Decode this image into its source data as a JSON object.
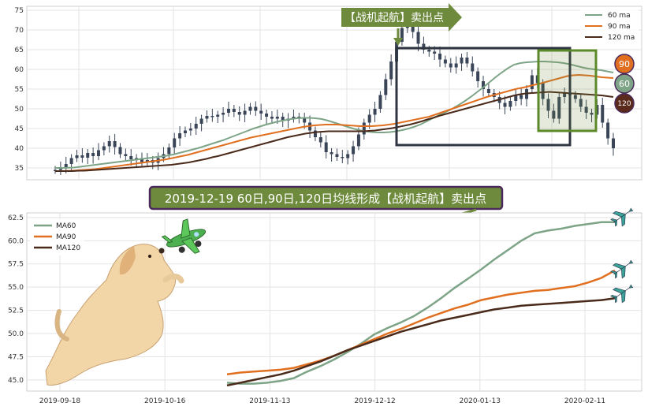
{
  "top_panel": {
    "callout_label": "【战机起航】卖出点",
    "badges": [
      "90",
      "60",
      "120"
    ],
    "badge_colors": {
      "90": "#e07020",
      "60": "#7ea487",
      "120": "#5a2a1c"
    },
    "colors": {
      "ma60": "#7ea487",
      "ma90": "#e07020",
      "ma120": "#4a2a1a",
      "candle": "#3a4658",
      "box_dark": "#2e3440",
      "box_green": "#5c8a2a"
    }
  },
  "banner": {
    "text": "2019-12-19 60日,90日,120日均线形成【战机起航】卖出点",
    "bg": "#6e8b3d",
    "border": "#4a2a5a"
  },
  "chart_data": [
    {
      "type": "candlestick+line",
      "ylim": [
        32,
        76
      ],
      "yticks": [
        35,
        40,
        45,
        50,
        55,
        60,
        65,
        70,
        75
      ],
      "n": 104,
      "legend": {
        "position": "top-right",
        "entries": [
          "60 ma",
          "90 ma",
          "120 ma"
        ]
      },
      "close": [
        34.5,
        35.2,
        36.0,
        37.5,
        38.2,
        37.6,
        38.8,
        38.0,
        39.5,
        40.5,
        41.8,
        40.3,
        38.5,
        38.0,
        37.2,
        37.5,
        36.5,
        37.0,
        36.3,
        37.5,
        38.5,
        40.2,
        42.5,
        43.8,
        44.5,
        45.0,
        46.2,
        47.5,
        48.2,
        48.0,
        48.5,
        49.0,
        50.0,
        49.2,
        48.5,
        49.5,
        50.5,
        49.5,
        48.8,
        48.0,
        47.5,
        48.0,
        47.0,
        47.5,
        48.0,
        47.6,
        46.5,
        44.5,
        42.8,
        41.5,
        39.0,
        38.5,
        37.8,
        37.5,
        38.5,
        40.5,
        43.5,
        46.5,
        48.5,
        50.0,
        53.5,
        57.5,
        62.0,
        67.0,
        70.5,
        72.0,
        69.5,
        66.5,
        65.0,
        64.5,
        64.0,
        62.5,
        61.5,
        60.5,
        61.5,
        63.0,
        61.5,
        59.5,
        57.0,
        55.0,
        54.0,
        53.0,
        51.5,
        50.5,
        52.0,
        53.5,
        52.5,
        55.0,
        58.5,
        56.5,
        52.5,
        49.5,
        47.5,
        53.0,
        54.0,
        53.5,
        52.5,
        50.5,
        49.0,
        48.5,
        51.0,
        46.5,
        42.5,
        40.0
      ],
      "series": [
        {
          "name": "60 ma",
          "values": [
            35.0,
            35.0,
            35.05,
            35.1,
            35.3,
            35.5,
            35.7,
            35.9,
            36.1,
            36.3,
            36.5,
            36.7,
            36.9,
            37.1,
            37.3,
            37.5,
            37.7,
            37.9,
            38.1,
            38.4,
            38.8,
            39.2,
            39.6,
            40.0,
            40.5,
            41.0,
            41.5,
            42.0,
            42.6,
            43.2,
            43.8,
            44.4,
            45.0,
            45.5,
            46.0,
            46.4,
            46.8,
            47.1,
            47.4,
            47.6,
            47.7,
            47.7,
            47.6,
            47.4,
            47.0,
            46.5,
            46.0,
            45.5,
            45.0,
            44.6,
            44.3,
            44.1,
            44.0,
            44.0,
            44.1,
            44.3,
            44.6,
            45.0,
            45.5,
            46.1,
            46.9,
            47.7,
            48.5,
            49.2,
            50.0,
            50.9,
            51.9,
            53.0,
            54.2,
            55.4,
            56.7,
            58.0,
            59.2,
            60.3,
            61.2,
            61.6,
            61.8,
            61.9,
            62.0,
            62.0,
            61.9,
            61.8,
            61.6,
            61.3,
            60.9,
            60.5,
            60.2,
            60.0,
            59.8,
            59.5,
            59.2
          ]
        },
        {
          "name": "90 ma",
          "values": [
            34.2,
            34.2,
            34.25,
            34.3,
            34.4,
            34.5,
            34.6,
            34.7,
            34.9,
            35.1,
            35.3,
            35.5,
            35.7,
            35.9,
            36.1,
            36.3,
            36.5,
            36.7,
            36.9,
            37.1,
            37.4,
            37.7,
            38.0,
            38.3,
            38.7,
            39.1,
            39.5,
            39.9,
            40.3,
            40.7,
            41.1,
            41.5,
            41.9,
            42.3,
            42.7,
            43.0,
            43.3,
            43.6,
            43.9,
            44.2,
            44.5,
            44.8,
            45.1,
            45.4,
            45.6,
            45.8,
            45.9,
            46.0,
            46.0,
            46.0,
            45.9,
            45.8,
            45.7,
            45.6,
            45.6,
            45.6,
            45.7,
            45.8,
            46.0,
            46.2,
            46.5,
            46.8,
            47.1,
            47.4,
            47.7,
            48.0,
            48.5,
            49.0,
            49.5,
            50.0,
            50.5,
            51.0,
            51.5,
            52.0,
            52.5,
            53.0,
            53.4,
            53.8,
            54.2,
            54.6,
            55.0,
            55.3,
            55.6,
            56.0,
            56.3,
            56.7,
            57.1,
            57.5,
            57.9,
            58.3,
            58.5,
            58.6,
            58.5,
            58.4,
            58.2,
            58.0,
            57.9,
            57.8
          ]
        },
        {
          "name": "120 ma",
          "values": [
            34.2,
            34.2,
            34.2,
            34.2,
            34.3,
            34.3,
            34.4,
            34.5,
            34.6,
            34.7,
            34.8,
            34.9,
            35.0,
            35.1,
            35.2,
            35.3,
            35.4,
            35.5,
            35.6,
            35.7,
            35.8,
            36.0,
            36.2,
            36.4,
            36.7,
            37.0,
            37.3,
            37.7,
            38.0,
            38.4,
            38.8,
            39.2,
            39.6,
            40.0,
            40.4,
            40.8,
            41.2,
            41.6,
            42.0,
            42.4,
            42.8,
            43.1,
            43.4,
            43.7,
            43.9,
            44.1,
            44.2,
            44.3,
            44.3,
            44.3,
            44.3,
            44.3,
            44.3,
            44.3,
            44.4,
            44.5,
            44.7,
            44.9,
            45.1,
            45.4,
            45.7,
            46.0,
            46.4,
            46.8,
            47.3,
            47.7,
            48.2,
            48.6,
            49.0,
            49.4,
            49.8,
            50.2,
            50.6,
            51.0,
            51.4,
            51.8,
            52.2,
            52.6,
            53.0,
            53.4,
            53.7,
            53.9,
            54.0,
            54.1,
            54.2,
            54.3,
            54.2,
            54.1,
            54.0,
            53.9,
            53.8,
            53.7,
            53.6,
            53.5,
            53.4,
            53.2,
            53.0
          ]
        }
      ]
    },
    {
      "type": "line",
      "ylim": [
        43.8,
        63.0
      ],
      "yticks": [
        "45.0",
        "47.5",
        "50.0",
        "52.5",
        "55.0",
        "57.5",
        "60.0",
        "62.5"
      ],
      "x_labels": [
        "2019-09-18",
        "2019-10-16",
        "2019-11-13",
        "2019-12-12",
        "2020-01-13",
        "2020-02-11"
      ],
      "legend": {
        "position": "top-left",
        "entries": [
          "MA60",
          "MA90",
          "MA120"
        ]
      },
      "series": [
        {
          "name": "MA60",
          "values": [
            44.7,
            44.6,
            44.6,
            44.7,
            44.9,
            45.2,
            45.9,
            46.5,
            47.2,
            48.0,
            48.9,
            49.9,
            50.6,
            51.2,
            51.9,
            52.8,
            53.8,
            54.9,
            55.9,
            56.9,
            58.0,
            59.0,
            60.0,
            60.8,
            61.1,
            61.3,
            61.6,
            61.8,
            62.0,
            62.0
          ]
        },
        {
          "name": "MA90",
          "values": [
            45.6,
            45.8,
            45.9,
            46.0,
            46.1,
            46.3,
            46.7,
            47.1,
            47.6,
            48.2,
            48.8,
            49.4,
            50.0,
            50.5,
            51.1,
            51.7,
            52.2,
            52.7,
            53.1,
            53.6,
            53.9,
            54.2,
            54.4,
            54.6,
            54.7,
            54.9,
            55.1,
            55.5,
            56.0,
            56.8
          ]
        },
        {
          "name": "MA120",
          "values": [
            44.4,
            44.7,
            45.0,
            45.3,
            45.6,
            46.0,
            46.5,
            47.0,
            47.6,
            48.2,
            48.7,
            49.2,
            49.7,
            50.2,
            50.6,
            51.0,
            51.4,
            51.7,
            52.0,
            52.3,
            52.6,
            52.8,
            53.0,
            53.1,
            53.2,
            53.3,
            53.4,
            53.5,
            53.6,
            53.8
          ]
        }
      ]
    }
  ]
}
